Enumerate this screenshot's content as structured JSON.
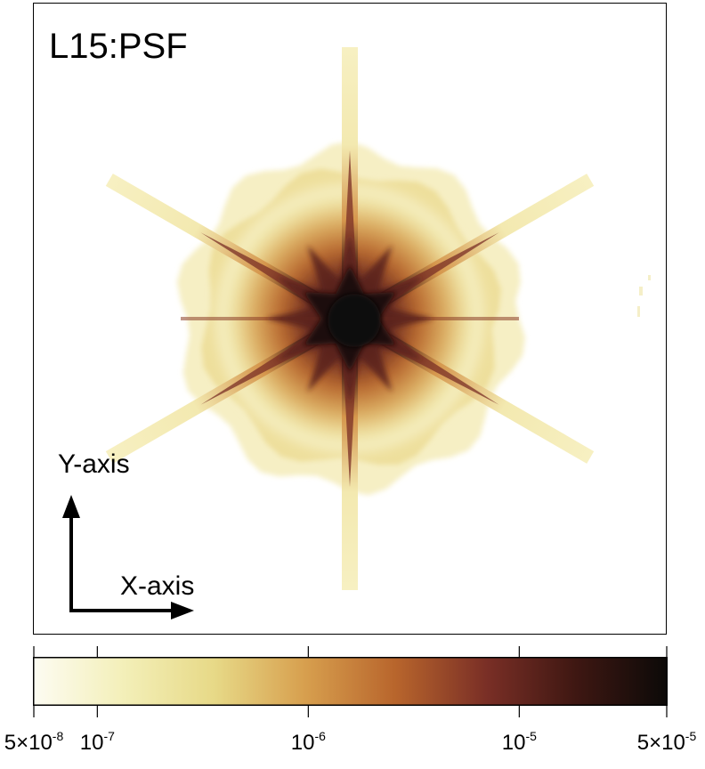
{
  "chart_data": {
    "type": "heatmap",
    "title": "L15:PSF",
    "annotations": {
      "y_arrow_label": "Y-axis",
      "x_arrow_label": "X-axis"
    },
    "colorbar": {
      "scale": "log",
      "range": [
        5e-08,
        5e-05
      ],
      "orientation": "horizontal",
      "colors": [
        "#fdfcf2",
        "#f3efb8",
        "#e7d987",
        "#d79f4e",
        "#b8652c",
        "#7a2f26",
        "#3e1712",
        "#0c0a08"
      ],
      "ticks": [
        {
          "value": 5e-08,
          "mantissa": "5×10",
          "exp": "-8"
        },
        {
          "value": 1e-07,
          "mantissa": "10",
          "exp": "-7"
        },
        {
          "value": 1e-06,
          "mantissa": "10",
          "exp": "-6"
        },
        {
          "value": 1e-05,
          "mantissa": "10",
          "exp": "-5"
        },
        {
          "value": 5e-05,
          "mantissa": "5×10",
          "exp": "-5"
        }
      ]
    },
    "image": {
      "description_shape": "six-spike diffraction star",
      "spike_angles_deg": [
        90,
        30,
        150
      ],
      "peak_value": 5e-05,
      "background_value": 5e-08
    }
  }
}
